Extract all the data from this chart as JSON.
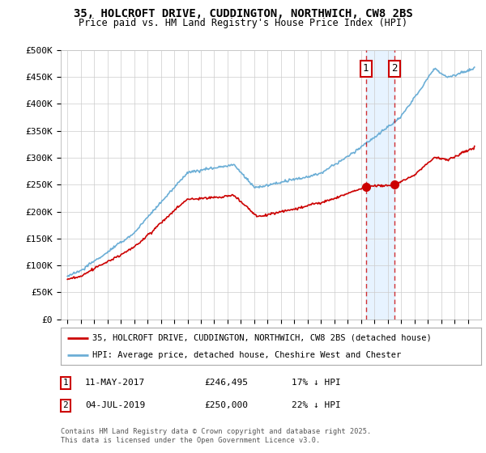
{
  "title_line1": "35, HOLCROFT DRIVE, CUDDINGTON, NORTHWICH, CW8 2BS",
  "title_line2": "Price paid vs. HM Land Registry's House Price Index (HPI)",
  "ylabel_ticks": [
    "£0",
    "£50K",
    "£100K",
    "£150K",
    "£200K",
    "£250K",
    "£300K",
    "£350K",
    "£400K",
    "£450K",
    "£500K"
  ],
  "ytick_values": [
    0,
    50000,
    100000,
    150000,
    200000,
    250000,
    300000,
    350000,
    400000,
    450000,
    500000
  ],
  "hpi_color": "#6baed6",
  "price_color": "#cc0000",
  "vline_color": "#cc0000",
  "shade_color": "#ddeeff",
  "marker1_date_x": 2017.36,
  "marker2_date_x": 2019.5,
  "marker1_price": 246495,
  "marker2_price": 250000,
  "legend_label1": "35, HOLCROFT DRIVE, CUDDINGTON, NORTHWICH, CW8 2BS (detached house)",
  "legend_label2": "HPI: Average price, detached house, Cheshire West and Chester",
  "footer": "Contains HM Land Registry data © Crown copyright and database right 2025.\nThis data is licensed under the Open Government Licence v3.0.",
  "background_color": "#ffffff",
  "grid_color": "#cccccc",
  "xlim_left": 1994.5,
  "xlim_right": 2026.0,
  "ylim_top": 500000
}
